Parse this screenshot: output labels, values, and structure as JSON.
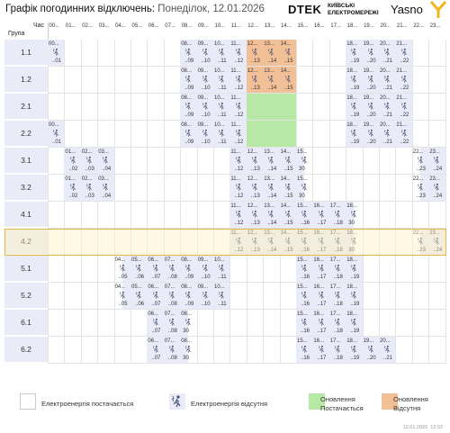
{
  "header": {
    "title": "Графік погодинних відключень:",
    "subtitle": "Понеділок, 12.01.2026"
  },
  "brand": {
    "dtek": "DTEK",
    "kyiv_1": "КИЇВСЬКІ",
    "kyiv_2": "ЕЛЕКТРОМЕРЕЖІ",
    "yasno": "Yasno"
  },
  "table": {
    "corner_top": "Час",
    "corner_bottom": "Група",
    "hours": [
      "00...",
      "01...",
      "02...",
      "03...",
      "04...",
      "05...",
      "06...",
      "07...",
      "08...",
      "09...",
      "10...",
      "11...",
      "12...",
      "13...",
      "14...",
      "15...",
      "16...",
      "17...",
      "18...",
      "19...",
      "20...",
      "21...",
      "22...",
      "23..."
    ],
    "hour_ends": [
      "..01",
      "..02",
      "..03",
      "..04",
      "..05",
      "..06",
      "..07",
      "..08",
      "..09",
      "..10",
      "..11",
      "..12",
      "..13",
      "..14",
      "..15",
      "..16",
      "..17",
      "..18",
      "..19",
      "..20",
      "..21",
      "..22",
      "..23",
      "..24"
    ],
    "half": "30",
    "groups": [
      "1.1",
      "1.2",
      "2.1",
      "2.2",
      "3.1",
      "3.2",
      "4.1",
      "4.2",
      "5.1",
      "5.2",
      "6.1",
      "6.2"
    ],
    "highlighted_group": "4.2"
  },
  "schedule": {
    "1.1": {
      "off": [
        [
          0,
          1
        ],
        [
          8,
          12
        ],
        [
          12,
          15
        ],
        [
          18,
          22
        ]
      ],
      "orange": [
        12,
        15
      ]
    },
    "1.2": {
      "off": [
        [
          8,
          12
        ],
        [
          12,
          15
        ],
        [
          18,
          22
        ]
      ],
      "orange": [
        12,
        15
      ]
    },
    "2.1": {
      "off": [
        [
          8,
          12
        ],
        [
          18,
          22
        ]
      ],
      "green": [
        12,
        15
      ]
    },
    "2.2": {
      "off": [
        [
          0,
          1
        ],
        [
          8,
          12
        ],
        [
          18,
          22
        ]
      ],
      "green": [
        12,
        15
      ]
    },
    "3.1": {
      "off": [
        [
          1,
          4
        ],
        [
          11,
          15.5
        ],
        [
          22.5,
          24
        ]
      ]
    },
    "3.2": {
      "off": [
        [
          1,
          4
        ],
        [
          11,
          15.5
        ],
        [
          22.5,
          24
        ]
      ]
    },
    "4.1": {
      "off": [
        [
          11,
          18.5
        ]
      ]
    },
    "4.2": {
      "off": [
        [
          11,
          18.5
        ],
        [
          22.5,
          24
        ]
      ]
    },
    "5.1": {
      "off": [
        [
          4.5,
          11
        ],
        [
          15,
          19
        ]
      ]
    },
    "5.2": {
      "off": [
        [
          4.5,
          11
        ],
        [
          15,
          19
        ]
      ]
    },
    "6.1": {
      "off": [
        [
          6,
          8.5
        ],
        [
          15,
          19
        ]
      ]
    },
    "6.2": {
      "off": [
        [
          6,
          8.5
        ],
        [
          15,
          21
        ]
      ]
    }
  },
  "legend": {
    "power_on": "Електроенергія постачається",
    "power_off": "Електроенергія відсутня",
    "upd_power_1": "Оновлення",
    "upd_power_2": "Постачається",
    "upd_off_1": "Оновлення",
    "upd_off_2": "Відсутня"
  },
  "footer": {
    "date": "12.01.2026",
    "time": "12:02"
  },
  "colors": {
    "off": "#e9ebf8",
    "update_on": "#b8e8a6",
    "update_off": "#f2c097",
    "highlight": "#e2b74a"
  }
}
